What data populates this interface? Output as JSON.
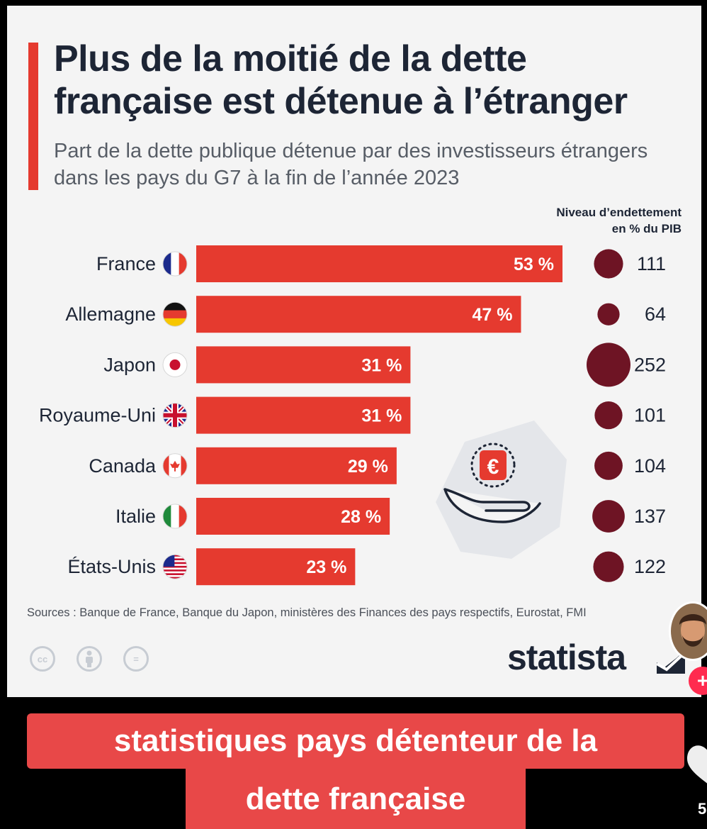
{
  "chart_data": {
    "type": "bar",
    "title": "Plus de la moitié de la dette française est détenue à l’étranger",
    "subtitle": "Part de la dette publique détenue par des investisseurs étrangers dans les pays du G7 à la fin de l’année 2023",
    "categories": [
      "France",
      "Allemagne",
      "Japon",
      "Royaume-Uni",
      "Canada",
      "Italie",
      "États-Unis"
    ],
    "values": [
      53,
      47,
      31,
      31,
      29,
      28,
      23
    ],
    "value_labels": [
      "53 %",
      "47 %",
      "31 %",
      "31 %",
      "29 %",
      "28 %",
      "23 %"
    ],
    "secondary_label": "Niveau d’endettement en % du PIB",
    "secondary_label_lines": [
      "Niveau d’endettement",
      "en % du PIB"
    ],
    "secondary_values": [
      111,
      64,
      252,
      101,
      104,
      137,
      122
    ],
    "secondary_labels": [
      "111",
      "64",
      "252",
      "101",
      "104",
      "137",
      "122"
    ],
    "flags": [
      "flag-france-icon",
      "flag-germany-icon",
      "flag-japan-icon",
      "flag-uk-icon",
      "flag-canada-icon",
      "flag-italy-icon",
      "flag-usa-icon"
    ],
    "xlim": [
      0,
      60
    ],
    "bar_color": "#e53a2f",
    "bubble_color": "#6e1424",
    "grid": false
  },
  "sources": "Sources : Banque de France, Banque du Japon, ministères des Finances des pays respectifs, Eurostat, FMI",
  "license_icons": [
    "cc-icon",
    "attribution-icon",
    "no-derivatives-icon"
  ],
  "license_text": [
    "cc",
    "=",
    ""
  ],
  "brand": "statista",
  "illustration": "euro-coin-hand-icon",
  "overlay": {
    "caption_line1": "statistiques pays détenteur de la",
    "caption_line2": "dette française",
    "count": "5",
    "plus": "+"
  },
  "colors": {
    "accent": "#e53a2f",
    "title": "#1d2535",
    "caption_bg": "#e84848"
  }
}
